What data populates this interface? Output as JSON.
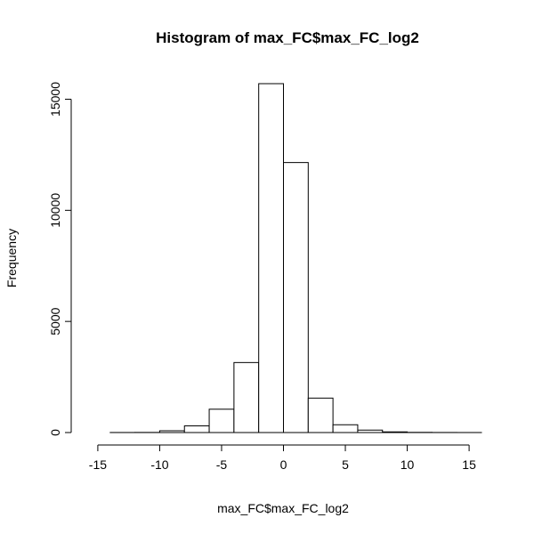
{
  "chart_data": {
    "type": "bar",
    "title": "Histogram of max_FC$max_FC_log2",
    "xlabel": "max_FC$max_FC_log2",
    "ylabel": "Frequency",
    "bins": [
      {
        "x0": -16,
        "x1": -14,
        "count": 0
      },
      {
        "x0": -14,
        "x1": -12,
        "count": 2
      },
      {
        "x0": -12,
        "x1": -10,
        "count": 5
      },
      {
        "x0": -10,
        "x1": -8,
        "count": 80
      },
      {
        "x0": -8,
        "x1": -6,
        "count": 300
      },
      {
        "x0": -6,
        "x1": -4,
        "count": 1050
      },
      {
        "x0": -4,
        "x1": -2,
        "count": 3150
      },
      {
        "x0": -2,
        "x1": 0,
        "count": 15700
      },
      {
        "x0": 0,
        "x1": 2,
        "count": 12150
      },
      {
        "x0": 2,
        "x1": 4,
        "count": 1550
      },
      {
        "x0": 4,
        "x1": 6,
        "count": 350
      },
      {
        "x0": 6,
        "x1": 8,
        "count": 110
      },
      {
        "x0": 8,
        "x1": 10,
        "count": 30
      },
      {
        "x0": 10,
        "x1": 12,
        "count": 8
      },
      {
        "x0": 12,
        "x1": 14,
        "count": 3
      },
      {
        "x0": 14,
        "x1": 16,
        "count": 1
      }
    ],
    "x_ticks": [
      -15,
      -10,
      -5,
      0,
      5,
      10,
      15
    ],
    "y_ticks": [
      0,
      5000,
      10000,
      15000
    ],
    "x_tick_labels": [
      "-15",
      "-10",
      "-5",
      "0",
      "5",
      "10",
      "15"
    ],
    "y_tick_labels": [
      "0",
      "5000",
      "10000",
      "15000"
    ],
    "xlim": [
      -16,
      16
    ],
    "ylim": [
      0,
      15700
    ],
    "grid": false
  }
}
